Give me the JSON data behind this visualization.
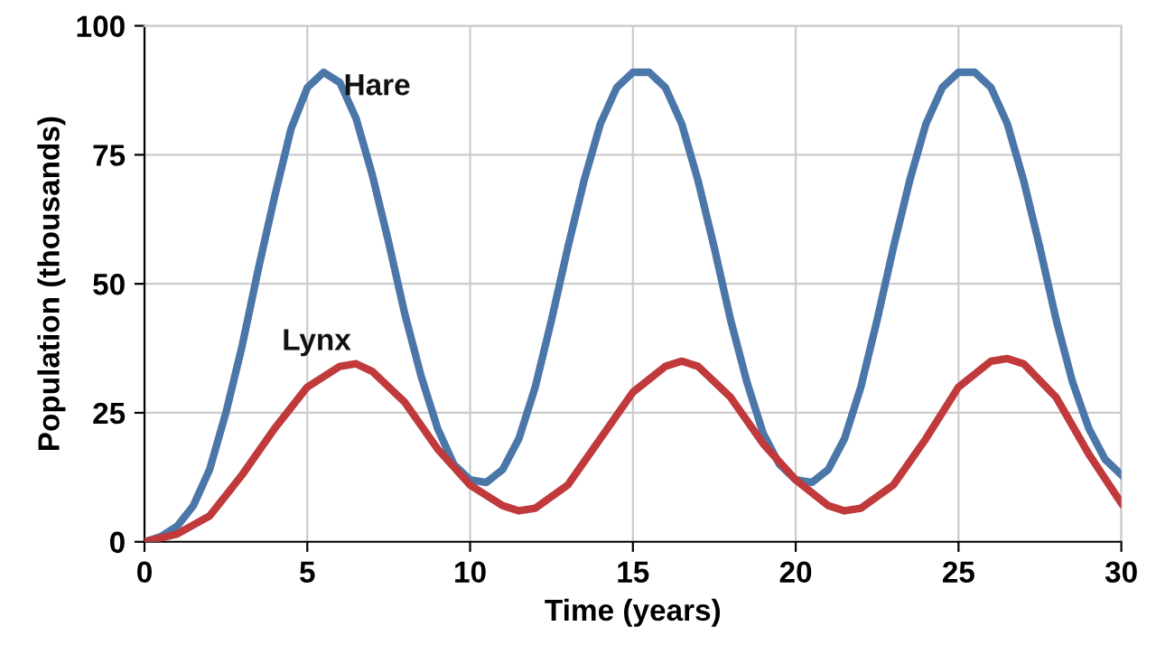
{
  "chart_data": {
    "type": "line",
    "xlabel": "Time (years)",
    "ylabel": "Population (thousands)",
    "xlim": [
      0,
      30
    ],
    "xticks": [
      0,
      5,
      10,
      15,
      20,
      25,
      30
    ],
    "ylim": [
      0,
      100
    ],
    "yticks": [
      0,
      25,
      50,
      75,
      100
    ],
    "grid": true,
    "legend": false,
    "marker": "none",
    "line_style": "solid",
    "series": [
      {
        "name": "Hare",
        "color": "#4a77a8",
        "x": [
          0,
          0.5,
          1,
          1.5,
          2,
          2.5,
          3,
          3.5,
          4,
          4.5,
          5,
          5.5,
          6,
          6.5,
          7,
          7.5,
          8,
          8.5,
          9,
          9.5,
          10,
          10.5,
          11,
          11.5,
          12,
          12.5,
          13,
          13.5,
          14,
          14.5,
          15,
          15.5,
          16,
          16.5,
          17,
          17.5,
          18,
          18.5,
          19,
          19.5,
          20,
          20.5,
          21,
          21.5,
          22,
          22.5,
          23,
          23.5,
          24,
          24.5,
          25,
          25.5,
          26,
          26.5,
          27,
          27.5,
          28,
          28.5,
          29,
          29.5,
          30
        ],
        "values": [
          0,
          1,
          3,
          7,
          14,
          25,
          38,
          53,
          67,
          80,
          88,
          91,
          89,
          82,
          71,
          58,
          44,
          32,
          22,
          15,
          12,
          11.5,
          14,
          20,
          30,
          43,
          57,
          70,
          81,
          88,
          91,
          91,
          88,
          81,
          70,
          57,
          43,
          31,
          21,
          15,
          12,
          11.5,
          14,
          20,
          30,
          43,
          57,
          70,
          81,
          88,
          91,
          91,
          88,
          81,
          70,
          57,
          43,
          31,
          22,
          16,
          13
        ]
      },
      {
        "name": "Lynx",
        "color": "#c0393b",
        "x": [
          0,
          1,
          2,
          3,
          4,
          5,
          6,
          6.5,
          7,
          8,
          9,
          10,
          11,
          11.5,
          12,
          13,
          14,
          15,
          16,
          16.5,
          17,
          18,
          19,
          20,
          21,
          21.5,
          22,
          23,
          24,
          25,
          26,
          26.5,
          27,
          28,
          29,
          30
        ],
        "values": [
          0,
          1.5,
          5,
          13,
          22,
          30,
          34,
          34.5,
          33,
          27,
          18,
          11,
          7,
          6,
          6.5,
          11,
          20,
          29,
          34,
          35,
          34,
          28,
          19,
          12,
          7,
          6,
          6.5,
          11,
          20,
          30,
          35,
          35.5,
          34.5,
          28,
          17,
          7.5
        ]
      }
    ]
  }
}
